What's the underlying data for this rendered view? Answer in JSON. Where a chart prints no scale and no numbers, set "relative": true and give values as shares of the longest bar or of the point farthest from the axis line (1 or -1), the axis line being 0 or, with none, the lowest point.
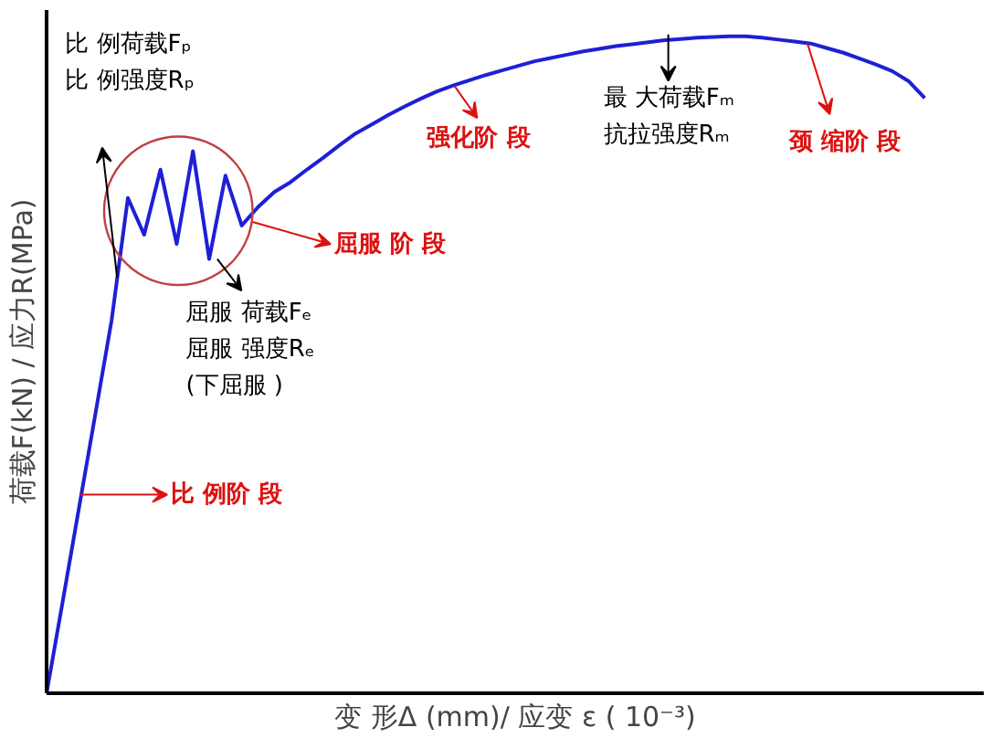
{
  "chart_data": {
    "type": "line",
    "relative": true,
    "xlabel": "变 形Δ (mm)/ 应变 ε ( 10⁻³)",
    "ylabel": "荷载F(kN) / 应力R(MPa)",
    "categories": [
      null,
      null,
      null,
      null,
      null,
      null,
      null,
      null,
      null,
      null,
      null,
      null,
      null,
      null,
      null,
      null,
      null,
      null,
      null,
      null,
      null,
      null,
      null,
      null,
      null,
      null,
      null,
      null,
      null,
      null,
      null,
      null,
      null,
      null,
      null,
      null,
      null,
      null,
      null,
      null,
      null,
      null,
      null,
      null,
      null,
      null,
      null,
      null,
      null,
      null,
      null,
      null,
      null,
      null,
      null
    ],
    "series": [
      {
        "color": "#1f1fd6",
        "values": [
          0,
          0.141,
          0.283,
          0.425,
          0.568,
          0.754,
          0.698,
          0.797,
          0.684,
          0.825,
          0.661,
          0.788,
          0.712,
          0.74,
          0.763,
          0.778,
          0.797,
          0.815,
          0.834,
          0.852,
          0.866,
          0.88,
          0.893,
          0.905,
          0.916,
          0.925,
          0.933,
          0.941,
          0.948,
          0.955,
          0.962,
          0.967,
          0.972,
          0.977,
          0.981,
          0.985,
          0.988,
          0.991,
          0.994,
          0.996,
          0.998,
          0.999,
          1.0,
          1.0,
          0.998,
          0.995,
          0.992,
          0.989,
          0.982,
          0.975,
          0.966,
          0.957,
          0.947,
          0.932,
          0.906
        ]
      }
    ],
    "annotations": [
      "比 例荷载Fₚ\n比 例强度Rₚ",
      "屈服 荷载Fₑ\n屈服 强度Rₑ\n(下屈服 )",
      "屈服 阶 段",
      "比 例阶 段",
      "强化阶 段",
      "最 大荷载Fₘ\n抗拉强度Rₘ",
      "颈 缩阶 段"
    ]
  }
}
